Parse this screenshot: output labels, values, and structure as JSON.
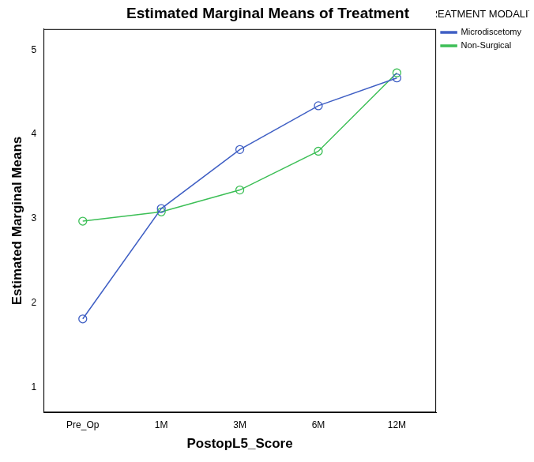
{
  "chart_data": {
    "type": "line",
    "title": "Estimated Marginal Means of Treatment",
    "x_label": "PostopL5_Score",
    "y_label": "Estimated Marginal Means",
    "legend_title": "TREATMENT MODALITY",
    "categories": [
      "Pre_Op",
      "1M",
      "3M",
      "6M",
      "12M"
    ],
    "series": [
      {
        "name": "Microdiscetomy",
        "color": "#3f5fc4",
        "marker": "circle",
        "line_style": "solid",
        "values": [
          1.81,
          3.12,
          3.82,
          4.34,
          4.67
        ]
      },
      {
        "name": "Non-Surgical",
        "color": "#3cbf56",
        "marker": "circle",
        "line_style": "solid",
        "values": [
          2.97,
          3.08,
          3.34,
          3.8,
          4.73
        ]
      }
    ],
    "ylim": [
      0.7,
      5.25
    ],
    "yticks": [
      1,
      2,
      3,
      4,
      5
    ],
    "grid": false,
    "legend": "right"
  }
}
